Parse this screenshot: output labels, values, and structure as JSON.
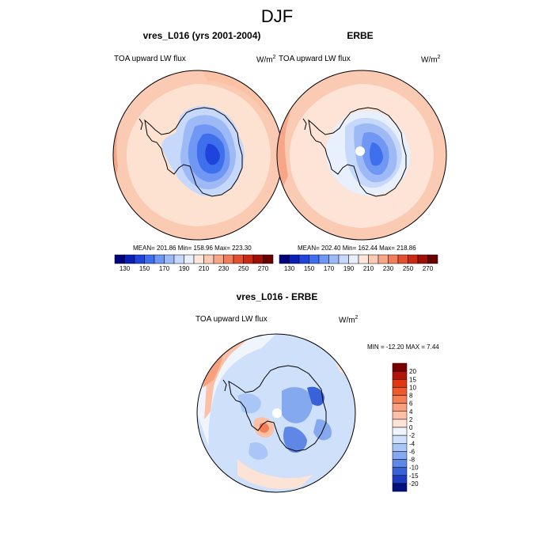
{
  "figure": {
    "title": "DJF"
  },
  "panels": [
    {
      "title": "vres_L016 (yrs 2001-2004)",
      "left_label": "TOA upward LW flux",
      "units": "W/m",
      "units_exp": "2",
      "stats": "MEAN= 201.86  Min= 158.96  Max= 223.30"
    },
    {
      "title": "ERBE",
      "left_label": "TOA upward LW flux",
      "units": "W/m",
      "units_exp": "2",
      "stats": "MEAN= 202.40  Min= 162.44  Max= 218.86"
    },
    {
      "title": "vres_L016 - ERBE",
      "left_label": "TOA upward LW flux",
      "units": "W/m",
      "units_exp": "2",
      "stats": "MIN = -12.20 MAX =   7.44"
    }
  ],
  "colorbar_abs": {
    "tick_labels": [
      "130",
      "150",
      "170",
      "190",
      "210",
      "230",
      "250",
      "270"
    ],
    "colors": [
      "#00007f",
      "#0a1fb5",
      "#1f44db",
      "#3e6fec",
      "#6f97f3",
      "#9dbaf7",
      "#c6d8fb",
      "#e8f0fd",
      "#fde7da",
      "#fbcab2",
      "#f7a688",
      "#f17d5c",
      "#e4502f",
      "#c92a12",
      "#9e0f05",
      "#6b0000"
    ]
  },
  "colorbar_diff": {
    "tick_labels": [
      "20",
      "15",
      "10",
      "8",
      "6",
      "4",
      "2",
      "0",
      "-2",
      "-4",
      "-6",
      "-8",
      "-10",
      "-15",
      "-20"
    ],
    "colors": [
      "#7a0000",
      "#b3140a",
      "#dd3715",
      "#ef5a2c",
      "#f57e55",
      "#f8a07e",
      "#fbc0a5",
      "#fde3d5",
      "#f0f4fd",
      "#cfe0fb",
      "#aac6f6",
      "#85a9ef",
      "#5f88e6",
      "#3a62d8",
      "#1c3bc0",
      "#00107e"
    ]
  }
}
